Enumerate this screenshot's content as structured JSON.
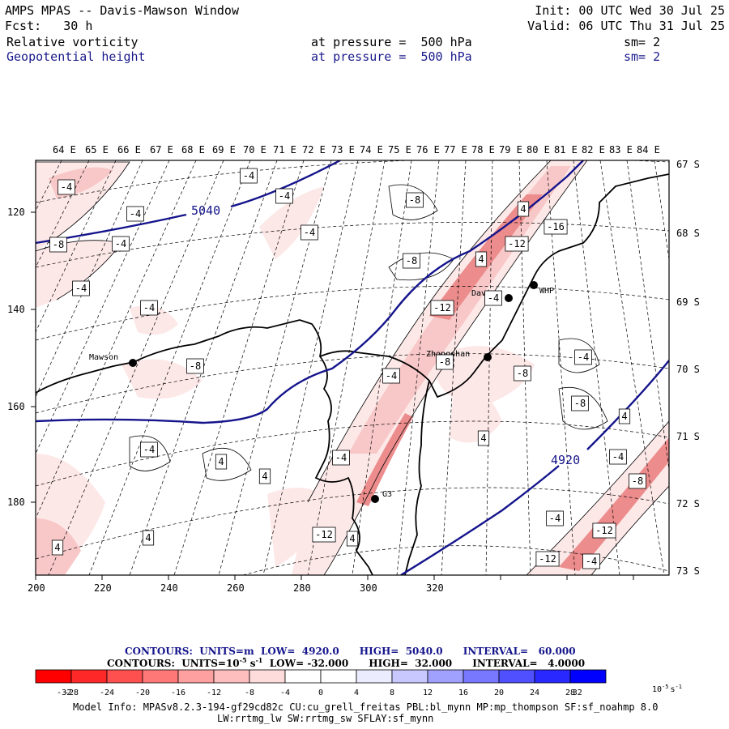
{
  "header": {
    "title": "AMPS MPAS -- Davis-Mawson Window",
    "forecast": "Fcst:   30 h",
    "init": "Init: 00 UTC Wed 30 Jul 25",
    "valid": "Valid: 06 UTC Thu 31 Jul 25",
    "field1": "Relative vorticity",
    "field1_level": "at pressure =  500 hPa",
    "field1_sm": "sm= 2",
    "field2": "Geopotential height",
    "field2_level": "at pressure =  500 hPa",
    "field2_sm": "sm= 2"
  },
  "map": {
    "top_longitudes": [
      "64 E",
      "65 E",
      "66 E",
      "67 E",
      "68 E",
      "69 E",
      "70 E",
      "71 E",
      "72 E",
      "73 E",
      "74 E",
      "75 E",
      "76 E",
      "77 E",
      "78 E",
      "79 E",
      "80 E",
      "81 E",
      "82 E",
      "83 E",
      "84 E"
    ],
    "right_latitudes": [
      "67 S",
      "68 S",
      "69 S",
      "70 S",
      "71 S",
      "72 S",
      "73 S"
    ],
    "x_ticks": [
      "200",
      "220",
      "240",
      "260",
      "280",
      "300",
      "320"
    ],
    "y_ticks": [
      "120",
      "140",
      "160",
      "180"
    ],
    "stations": [
      {
        "name": "Mawson"
      },
      {
        "name": "Davis"
      },
      {
        "name": "WHP"
      },
      {
        "name": "Zhongshan"
      },
      {
        "name": "G3"
      }
    ],
    "height_labels": [
      "5040",
      "4920"
    ],
    "vort_labels": [
      "-4",
      "-4",
      "-4",
      "-4",
      "-4",
      "-8",
      "-4",
      "-8",
      "-8",
      "-4",
      "-4",
      "4",
      "4",
      "-12",
      "-16",
      "-12",
      "-4",
      "-8",
      "-8",
      "-4",
      "-8",
      "-4",
      "-8",
      "4",
      "4",
      "-4",
      "-4",
      "4",
      "4",
      "4",
      "4",
      "-4",
      "-8",
      "-4",
      "-12",
      "-12",
      "-4",
      "-12",
      "4"
    ],
    "colors": {
      "map_border": "#000000",
      "height_contour": "#14148c",
      "pink_light": "#fde8e8",
      "pink_mid": "#f8c8c8",
      "pink_dark": "#ec8c8c"
    }
  },
  "contour_info": {
    "line1_prefix": "CONTOURS:  UNITS=m  LOW=  4920.0      HIGH=  5040.0      INTERVAL=   60.000",
    "line2_prefix": "CONTOURS:  UNITS=10",
    "line2_exp": "-5",
    "line2_s": " s",
    "line2_sexp": "-1",
    "line2_rest": "  LOW= -32.000      HIGH=  32.000      INTERVAL=   4.0000"
  },
  "colorbar": {
    "labels": [
      "-32",
      "-28",
      "-24",
      "-20",
      "-16",
      "-12",
      "-8",
      "-4",
      "0",
      "4",
      "8",
      "12",
      "16",
      "20",
      "24",
      "28",
      "32"
    ],
    "units": "10",
    "units_exp": "-5",
    "units_s": "s",
    "units_sexp": "-1",
    "colors": [
      "#ff0000",
      "#ff2828",
      "#ff5050",
      "#ff7878",
      "#ffa0a0",
      "#ffbebe",
      "#ffdcdc",
      "#fff0f0",
      "#ffffff",
      "#ffffff",
      "#ececff",
      "#c8c8ff",
      "#a0a0ff",
      "#7878ff",
      "#5050ff",
      "#2828ff",
      "#0000ff"
    ]
  },
  "footer": {
    "line1": "Model Info: MPASv8.2.3-194-gf29cd82c CU:cu_grell_freitas PBL:bl_mynn MP:mp_thompson SF:sf_noahmp 8.0",
    "line2": "LW:rrtmg_lw SW:rrtmg_sw SFLAY:sf_mynn"
  }
}
